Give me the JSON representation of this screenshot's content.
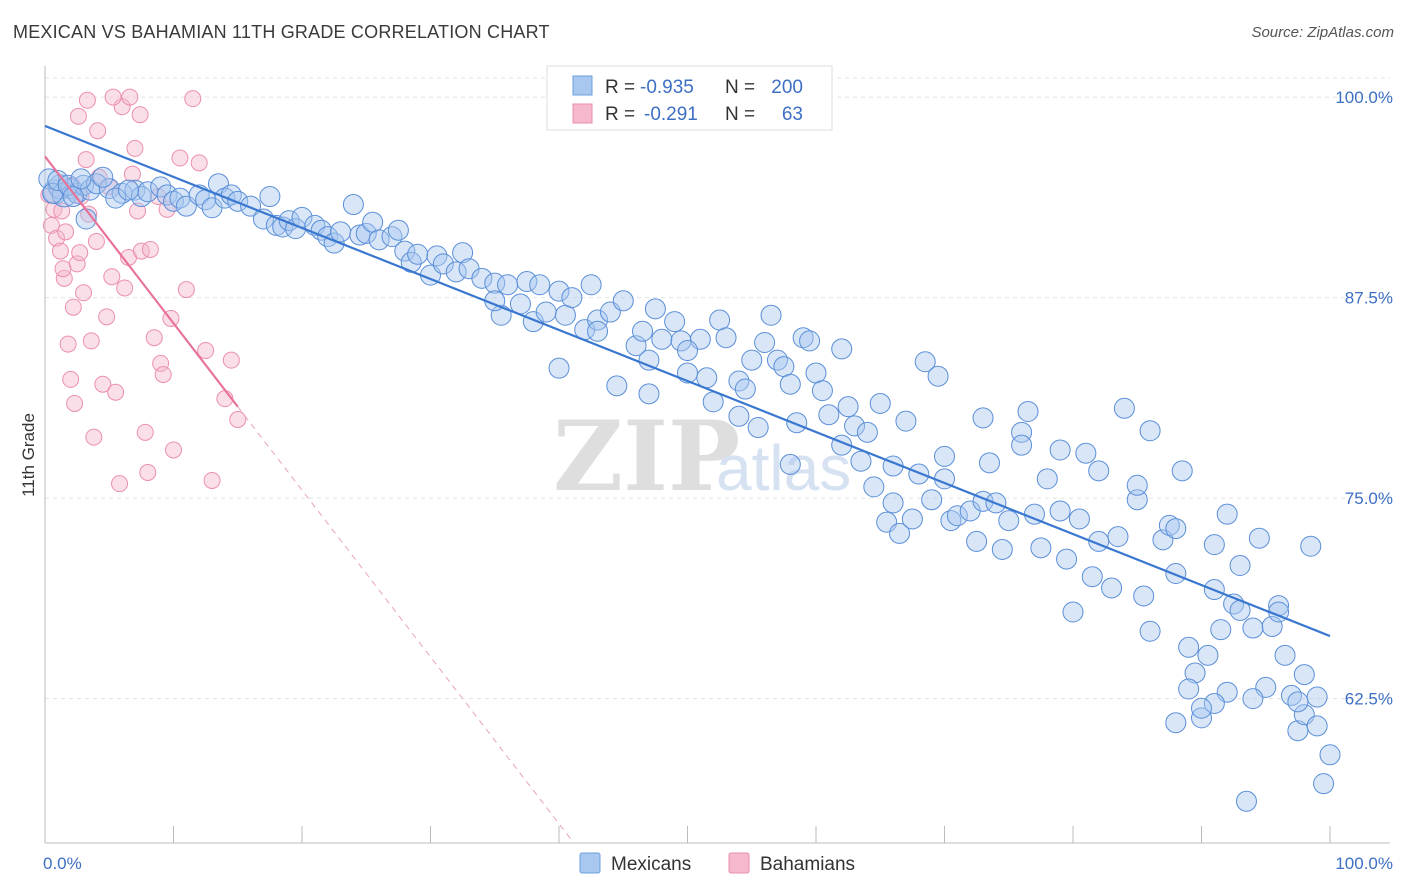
{
  "title": "MEXICAN VS BAHAMIAN 11TH GRADE CORRELATION CHART",
  "source": "Source: ZipAtlas.com",
  "watermark": {
    "zip": "ZIP",
    "atlas": "atlas"
  },
  "legend": {
    "rows": [
      {
        "r_label": "R =",
        "r_value": "-0.935",
        "n_label": "N =",
        "n_value": "200",
        "color": "#a9c8f0"
      },
      {
        "r_label": "R =",
        "r_value": "-0.291",
        "n_label": "N =",
        "n_value": "63",
        "color": "#f5b8cc"
      }
    ]
  },
  "bottom_legend": [
    {
      "label": "Mexicans",
      "color": "#a9c8f0"
    },
    {
      "label": "Bahamians",
      "color": "#f5b8cc"
    }
  ],
  "colors": {
    "blue": "#3a78d0",
    "blue_fill": "#a9c8f0",
    "pink": "#e8739a",
    "pink_fill": "#f5b8cc",
    "grid": "#e3e3e3",
    "tick_label": "#3d6fc4"
  },
  "chart_data": {
    "type": "scatter",
    "title": "MEXICAN VS BAHAMIAN 11TH GRADE CORRELATION CHART",
    "xlabel": "",
    "ylabel": "11th Grade",
    "xlim": [
      0,
      100
    ],
    "ylim": [
      53.5,
      101.5
    ],
    "x_tick_labels": [
      "0.0%",
      "100.0%"
    ],
    "y_ticks": [
      62.5,
      75.0,
      87.5,
      100.0
    ],
    "y_tick_labels": [
      "62.5%",
      "75.0%",
      "87.5%",
      "100.0%"
    ],
    "grid": true,
    "legend_position": "top-center",
    "series": [
      {
        "name": "Mexicans",
        "r": -0.935,
        "n": 200,
        "trend": {
          "x": [
            0,
            100
          ],
          "y": [
            98.2,
            66.4
          ]
        },
        "points": [
          [
            0.8,
            94.1
          ],
          [
            1.2,
            94.4
          ],
          [
            1.5,
            93.9
          ],
          [
            2.0,
            94.3
          ],
          [
            2.5,
            94.0
          ],
          [
            3.0,
            94.5
          ],
          [
            3.5,
            94.2
          ],
          [
            4.0,
            94.6
          ],
          [
            5.0,
            94.3
          ],
          [
            6.0,
            94.0
          ],
          [
            7.0,
            94.2
          ],
          [
            7.5,
            93.8
          ],
          [
            8.0,
            94.1
          ],
          [
            9.0,
            94.4
          ],
          [
            9.5,
            93.9
          ],
          [
            10.0,
            93.5
          ],
          [
            10.5,
            93.7
          ],
          [
            11.0,
            93.2
          ],
          [
            12.0,
            93.9
          ],
          [
            12.5,
            93.6
          ],
          [
            13.0,
            93.1
          ],
          [
            13.5,
            94.6
          ],
          [
            14.0,
            93.7
          ],
          [
            14.5,
            93.9
          ],
          [
            15.0,
            93.5
          ],
          [
            16.0,
            93.2
          ],
          [
            17.0,
            92.4
          ],
          [
            17.5,
            93.8
          ],
          [
            18.0,
            92.0
          ],
          [
            18.5,
            91.9
          ],
          [
            19.0,
            92.3
          ],
          [
            19.5,
            91.8
          ],
          [
            20.0,
            92.5
          ],
          [
            21.0,
            92.0
          ],
          [
            21.5,
            91.7
          ],
          [
            22.0,
            91.3
          ],
          [
            22.5,
            90.9
          ],
          [
            23.0,
            91.6
          ],
          [
            24.0,
            93.3
          ],
          [
            24.5,
            91.4
          ],
          [
            25.0,
            91.5
          ],
          [
            25.5,
            92.2
          ],
          [
            26.0,
            91.1
          ],
          [
            27.0,
            91.3
          ],
          [
            27.5,
            91.7
          ],
          [
            28.0,
            90.4
          ],
          [
            28.5,
            89.7
          ],
          [
            29.0,
            90.2
          ],
          [
            30.0,
            88.9
          ],
          [
            30.5,
            90.1
          ],
          [
            31.0,
            89.6
          ],
          [
            32.0,
            89.1
          ],
          [
            32.5,
            90.3
          ],
          [
            33.0,
            89.3
          ],
          [
            34.0,
            88.7
          ],
          [
            35.0,
            88.4
          ],
          [
            35.5,
            86.4
          ],
          [
            36.0,
            88.3
          ],
          [
            37.0,
            87.1
          ],
          [
            37.5,
            88.5
          ],
          [
            38.0,
            86.0
          ],
          [
            38.5,
            88.3
          ],
          [
            39.0,
            86.6
          ],
          [
            40.0,
            87.9
          ],
          [
            40.5,
            86.4
          ],
          [
            41.0,
            87.5
          ],
          [
            42.0,
            85.5
          ],
          [
            42.5,
            88.3
          ],
          [
            43.0,
            86.1
          ],
          [
            44.0,
            86.6
          ],
          [
            44.5,
            82.0
          ],
          [
            45.0,
            87.3
          ],
          [
            46.0,
            84.5
          ],
          [
            46.5,
            85.4
          ],
          [
            47.0,
            83.6
          ],
          [
            47.5,
            86.8
          ],
          [
            48.0,
            84.9
          ],
          [
            49.0,
            86.0
          ],
          [
            49.5,
            84.8
          ],
          [
            50.0,
            82.8
          ],
          [
            51.0,
            84.9
          ],
          [
            51.5,
            82.5
          ],
          [
            52.0,
            81.0
          ],
          [
            52.5,
            86.1
          ],
          [
            53.0,
            85.0
          ],
          [
            54.0,
            82.3
          ],
          [
            54.5,
            81.8
          ],
          [
            55.0,
            83.6
          ],
          [
            55.5,
            79.4
          ],
          [
            56.0,
            84.7
          ],
          [
            56.5,
            86.4
          ],
          [
            57.0,
            83.6
          ],
          [
            57.5,
            83.2
          ],
          [
            58.0,
            77.1
          ],
          [
            58.5,
            79.7
          ],
          [
            59.0,
            85.0
          ],
          [
            59.5,
            84.8
          ],
          [
            60.0,
            82.8
          ],
          [
            60.5,
            81.7
          ],
          [
            61.0,
            80.2
          ],
          [
            62.0,
            78.3
          ],
          [
            62.5,
            80.7
          ],
          [
            63.0,
            79.5
          ],
          [
            63.5,
            77.3
          ],
          [
            64.0,
            79.1
          ],
          [
            64.5,
            75.7
          ],
          [
            65.0,
            80.9
          ],
          [
            65.5,
            73.5
          ],
          [
            66.0,
            74.7
          ],
          [
            66.5,
            72.8
          ],
          [
            67.0,
            79.8
          ],
          [
            67.5,
            73.7
          ],
          [
            68.0,
            76.5
          ],
          [
            68.5,
            83.5
          ],
          [
            69.0,
            74.9
          ],
          [
            69.5,
            82.6
          ],
          [
            70.0,
            76.2
          ],
          [
            70.5,
            73.6
          ],
          [
            71.0,
            73.9
          ],
          [
            72.0,
            74.2
          ],
          [
            72.5,
            72.3
          ],
          [
            73.0,
            74.8
          ],
          [
            73.5,
            77.2
          ],
          [
            74.0,
            74.7
          ],
          [
            74.5,
            71.8
          ],
          [
            75.0,
            73.6
          ],
          [
            76.0,
            79.1
          ],
          [
            76.5,
            80.4
          ],
          [
            77.0,
            74.0
          ],
          [
            77.5,
            71.9
          ],
          [
            78.0,
            76.2
          ],
          [
            79.0,
            78.0
          ],
          [
            79.5,
            71.2
          ],
          [
            80.0,
            67.9
          ],
          [
            80.5,
            73.7
          ],
          [
            81.0,
            77.8
          ],
          [
            81.5,
            70.1
          ],
          [
            82.0,
            72.3
          ],
          [
            83.0,
            69.4
          ],
          [
            83.5,
            72.6
          ],
          [
            84.0,
            80.6
          ],
          [
            85.0,
            74.9
          ],
          [
            85.5,
            68.9
          ],
          [
            86.0,
            66.7
          ],
          [
            87.0,
            72.4
          ],
          [
            87.5,
            73.3
          ],
          [
            88.0,
            70.3
          ],
          [
            88.5,
            76.7
          ],
          [
            89.0,
            65.7
          ],
          [
            89.5,
            64.1
          ],
          [
            90.0,
            61.3
          ],
          [
            90.5,
            65.2
          ],
          [
            91.0,
            69.3
          ],
          [
            91.5,
            66.8
          ],
          [
            92.0,
            74.0
          ],
          [
            92.5,
            68.4
          ],
          [
            93.0,
            70.8
          ],
          [
            94.0,
            66.9
          ],
          [
            94.5,
            72.5
          ],
          [
            95.0,
            63.2
          ],
          [
            95.5,
            67.0
          ],
          [
            96.0,
            68.3
          ],
          [
            96.5,
            65.2
          ],
          [
            97.0,
            62.7
          ],
          [
            97.5,
            60.5
          ],
          [
            98.0,
            61.5
          ],
          [
            98.5,
            72.0
          ],
          [
            99.0,
            62.6
          ],
          [
            99.5,
            57.2
          ],
          [
            100.0,
            59.0
          ],
          [
            35.0,
            87.3
          ],
          [
            40.0,
            83.1
          ],
          [
            43.0,
            85.4
          ],
          [
            47.0,
            81.5
          ],
          [
            50.0,
            84.2
          ],
          [
            54.0,
            80.1
          ],
          [
            58.0,
            82.1
          ],
          [
            62.0,
            84.3
          ],
          [
            66.0,
            77.0
          ],
          [
            70.0,
            77.6
          ],
          [
            73.0,
            80.0
          ],
          [
            76.0,
            78.3
          ],
          [
            79.0,
            74.2
          ],
          [
            82.0,
            76.7
          ],
          [
            85.0,
            75.8
          ],
          [
            86.0,
            79.2
          ],
          [
            88.0,
            73.1
          ],
          [
            91.0,
            72.1
          ],
          [
            93.0,
            68.0
          ],
          [
            96.0,
            67.9
          ],
          [
            0.3,
            94.9
          ],
          [
            0.6,
            94.0
          ],
          [
            1.0,
            94.8
          ],
          [
            1.8,
            94.5
          ],
          [
            2.2,
            93.8
          ],
          [
            2.8,
            94.9
          ],
          [
            3.2,
            92.4
          ],
          [
            4.5,
            95.0
          ],
          [
            5.5,
            93.7
          ],
          [
            6.5,
            94.2
          ],
          [
            93.5,
            56.1
          ],
          [
            97.5,
            62.3
          ],
          [
            99.0,
            60.8
          ],
          [
            98.0,
            64.0
          ],
          [
            94.0,
            62.5
          ],
          [
            92.0,
            62.9
          ],
          [
            91.0,
            62.2
          ],
          [
            90.0,
            61.9
          ],
          [
            89.0,
            63.1
          ],
          [
            88.0,
            61.0
          ]
        ]
      },
      {
        "name": "Bahamians",
        "r": -0.291,
        "n": 63,
        "trend": {
          "x": [
            0,
            15
          ],
          "y": [
            96.3,
            80.7
          ]
        },
        "points": [
          [
            0.3,
            93.9
          ],
          [
            0.5,
            92.0
          ],
          [
            0.7,
            93.0
          ],
          [
            0.9,
            91.2
          ],
          [
            1.0,
            94.3
          ],
          [
            1.2,
            90.4
          ],
          [
            1.3,
            92.9
          ],
          [
            1.5,
            88.7
          ],
          [
            1.6,
            91.6
          ],
          [
            1.8,
            84.6
          ],
          [
            2.0,
            82.4
          ],
          [
            2.1,
            94.5
          ],
          [
            2.2,
            86.9
          ],
          [
            2.3,
            80.9
          ],
          [
            2.5,
            89.6
          ],
          [
            2.7,
            90.3
          ],
          [
            2.8,
            93.8
          ],
          [
            3.0,
            87.8
          ],
          [
            3.2,
            96.1
          ],
          [
            3.4,
            92.7
          ],
          [
            3.6,
            84.8
          ],
          [
            3.8,
            78.8
          ],
          [
            4.0,
            91.0
          ],
          [
            4.2,
            95.0
          ],
          [
            4.5,
            82.1
          ],
          [
            4.8,
            86.3
          ],
          [
            5.0,
            94.4
          ],
          [
            5.2,
            88.8
          ],
          [
            5.5,
            81.6
          ],
          [
            5.8,
            75.9
          ],
          [
            6.0,
            99.4
          ],
          [
            6.2,
            88.1
          ],
          [
            6.5,
            90.0
          ],
          [
            6.8,
            95.2
          ],
          [
            7.0,
            96.8
          ],
          [
            7.2,
            92.9
          ],
          [
            7.5,
            90.4
          ],
          [
            7.8,
            79.1
          ],
          [
            8.0,
            76.6
          ],
          [
            8.2,
            90.5
          ],
          [
            8.5,
            85.0
          ],
          [
            9.0,
            83.4
          ],
          [
            9.2,
            82.7
          ],
          [
            9.5,
            93.0
          ],
          [
            9.8,
            86.2
          ],
          [
            10.0,
            78.0
          ],
          [
            10.5,
            96.2
          ],
          [
            11.0,
            88.0
          ],
          [
            11.5,
            99.9
          ],
          [
            12.0,
            95.9
          ],
          [
            12.5,
            84.2
          ],
          [
            13.0,
            76.1
          ],
          [
            14.0,
            81.2
          ],
          [
            14.5,
            83.6
          ],
          [
            15.0,
            79.9
          ],
          [
            1.4,
            89.3
          ],
          [
            2.6,
            98.8
          ],
          [
            3.3,
            99.8
          ],
          [
            4.1,
            97.9
          ],
          [
            5.3,
            100.0
          ],
          [
            6.6,
            100.0
          ],
          [
            7.4,
            98.9
          ],
          [
            8.8,
            93.8
          ]
        ]
      }
    ]
  }
}
